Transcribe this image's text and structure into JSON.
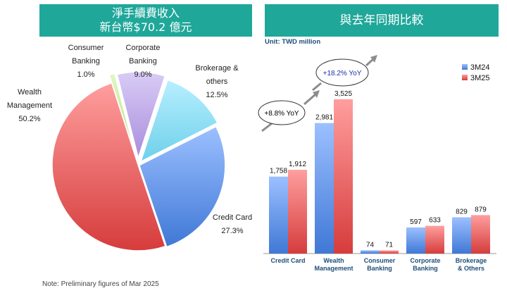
{
  "left_panel": {
    "title_line1": "淨手續費收入",
    "title_line2": "新台幣$70.2 億元"
  },
  "right_panel": {
    "title": "與去年同期比較",
    "unit_label": "Unit: TWD million"
  },
  "note": "Note: Preliminary figures of Mar 2025",
  "chart_data": [
    {
      "type": "pie",
      "title": "淨手續費收入 新台幣$70.2 億元",
      "slices": [
        {
          "label_lines": [
            "Consumer",
            "Banking"
          ],
          "value_label": "1.0%",
          "value": 1.0,
          "color": "#c7ec9a"
        },
        {
          "label_lines": [
            "Corporate",
            "Banking"
          ],
          "value_label": "9.0%",
          "value": 9.0,
          "color": "#bda6e8"
        },
        {
          "label_lines": [
            "Brokerage &",
            "others"
          ],
          "value_label": "12.5%",
          "value": 12.5,
          "color": "#8fe0f2"
        },
        {
          "label_lines": [
            "Credit Card"
          ],
          "value_label": "27.3%",
          "value": 27.3,
          "color": "#5b8ee0"
        },
        {
          "label_lines": [
            "Wealth",
            "Management"
          ],
          "value_label": "50.2%",
          "value": 50.2,
          "color": "#e65a5a"
        }
      ]
    },
    {
      "type": "bar",
      "title": "與去年同期比較",
      "ylabel": "Unit: TWD million",
      "categories": [
        {
          "lines": [
            "Credit Card"
          ]
        },
        {
          "lines": [
            "Wealth",
            "Management"
          ]
        },
        {
          "lines": [
            "Consumer",
            "Banking"
          ]
        },
        {
          "lines": [
            "Corporate",
            "Banking"
          ]
        },
        {
          "lines": [
            "Brokerage",
            "& Others"
          ]
        }
      ],
      "series": [
        {
          "name": "3M24",
          "color": "#5b8ee0",
          "values": [
            1758,
            2981,
            74,
            597,
            829
          ],
          "labels": [
            "1,758",
            "2,981",
            "74",
            "597",
            "829"
          ]
        },
        {
          "name": "3M25",
          "color": "#e65a5a",
          "values": [
            1912,
            3525,
            71,
            633,
            879
          ],
          "labels": [
            "1,912",
            "3,525",
            "71",
            "633",
            "879"
          ]
        }
      ],
      "annotations": [
        {
          "category_index": 0,
          "text": "+8.8% YoY",
          "color": "#000000"
        },
        {
          "category_index": 1,
          "text": "+18.2% YoY",
          "color": "#1a2fb0"
        }
      ],
      "legend_position": "top-right",
      "ylim": [
        0,
        3700
      ]
    }
  ]
}
